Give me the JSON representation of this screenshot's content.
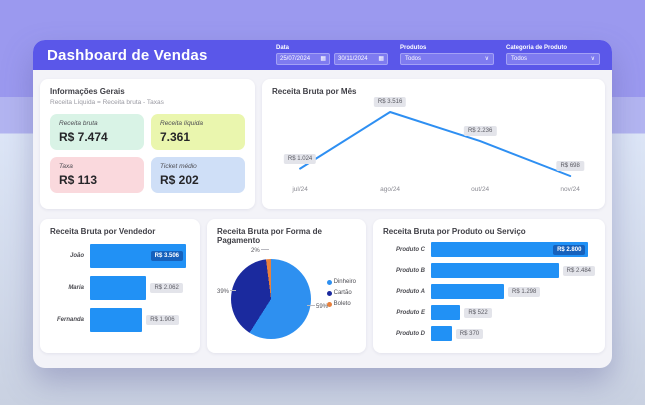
{
  "header": {
    "title": "Dashboard de Vendas",
    "filters": {
      "data_label": "Data",
      "date_start": "25/07/2024",
      "date_end": "30/11/2024",
      "produtos_label": "Produtos",
      "produtos_value": "Todos",
      "categoria_label": "Categoria de Produto",
      "categoria_value": "Todos"
    }
  },
  "icons": {
    "calendar": "▦",
    "chevron_down": "∨"
  },
  "info": {
    "title": "Informações Gerais",
    "subtitle": "Receita Líquida = Receita bruta - Taxas",
    "cards": [
      {
        "label": "Receita bruta",
        "value": "R$ 7.474",
        "bg": "#d9f3e6"
      },
      {
        "label": "Receita líquida",
        "value": "7.361",
        "bg": "#eaf6ae"
      },
      {
        "label": "Taxa",
        "value": "R$ 113",
        "bg": "#fad9dd"
      },
      {
        "label": "Ticket médio",
        "value": "R$ 202",
        "bg": "#cfdff7"
      }
    ]
  },
  "theme": {
    "header_purple": "#5a57e9",
    "background_lavender": "#9b99ef",
    "accent_blue": "#2191f5",
    "chip_gray": "#e3e4ea"
  },
  "chart_data": [
    {
      "type": "line",
      "title": "Receita Bruta por Mês",
      "categories": [
        "jul/24",
        "ago/24",
        "out/24",
        "nov/24"
      ],
      "values": [
        1024,
        3516,
        2236,
        698
      ],
      "labels": [
        "R$ 1.024",
        "R$ 3.516",
        "R$ 2.236",
        "R$ 698"
      ],
      "color": "#2e8ff2",
      "ylim": [
        698,
        3516
      ],
      "grid": false,
      "legend_position": "none"
    },
    {
      "type": "bar",
      "orientation": "horizontal",
      "title": "Receita Bruta por Vendedor",
      "categories": [
        "João",
        "Maria",
        "Fernanda"
      ],
      "values": [
        3506,
        2062,
        1906
      ],
      "labels": [
        "R$ 3.506",
        "R$ 2.062",
        "R$ 1.906"
      ],
      "color": "#2191f5",
      "xlim": [
        0,
        3506
      ]
    },
    {
      "type": "pie",
      "title": "Receita Bruta por Forma de Pagamento",
      "slices": [
        {
          "label": "Dinheiro",
          "pct": 59,
          "pct_label": "59%",
          "color": "#2e90f0"
        },
        {
          "label": "Cartão",
          "pct": 39,
          "pct_label": "39%",
          "color": "#1b2a9e"
        },
        {
          "label": "Boleto",
          "pct": 2,
          "pct_label": "2%",
          "color": "#e8803c"
        }
      ],
      "legend_position": "right"
    },
    {
      "type": "bar",
      "orientation": "horizontal",
      "title": "Receita Bruta por Produto ou Serviço",
      "categories": [
        "Produto C",
        "Produto B",
        "Produto A",
        "Produto E",
        "Produto D"
      ],
      "values": [
        2800,
        2484,
        1298,
        522,
        370
      ],
      "labels": [
        "R$ 2.800",
        "R$ 2.484",
        "R$ 1.298",
        "R$ 522",
        "R$ 370"
      ],
      "color": "#2191f5",
      "xlim": [
        0,
        2800
      ]
    }
  ]
}
